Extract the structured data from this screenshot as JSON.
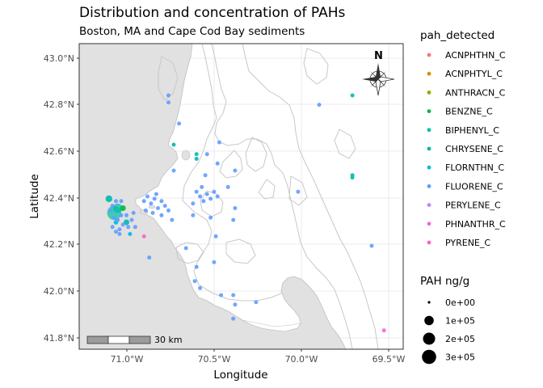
{
  "title": "Distribution and concentration of PAHs",
  "subtitle": "Boston, MA and Cape Cod Bay sediments",
  "x_axis_title": "Longitude",
  "y_axis_title": "Latitude",
  "x_ticks": [
    "71.0°W",
    "70.5°W",
    "70.0°W",
    "69.5°W"
  ],
  "y_ticks": [
    "43.0°N",
    "42.8°N",
    "42.6°N",
    "42.4°N",
    "42.2°N",
    "42.0°N",
    "41.8°N"
  ],
  "north_label": "N",
  "scale_label": "30 km",
  "legend_color": {
    "title": "pah_detected",
    "items": [
      {
        "label": "ACNPHTHN_C",
        "color": "#F8766D"
      },
      {
        "label": "ACNPHTYL_C",
        "color": "#D39200"
      },
      {
        "label": "ANTHRACN_C",
        "color": "#93AA00"
      },
      {
        "label": "BENZNE_C",
        "color": "#00BA38"
      },
      {
        "label": "BIPHENYL_C",
        "color": "#00C19F"
      },
      {
        "label": "CHRYSENE_C",
        "color": "#00B9AE"
      },
      {
        "label": "FLORNTHN_C",
        "color": "#00B9E3"
      },
      {
        "label": "FLUORENE_C",
        "color": "#619CFF"
      },
      {
        "label": "PERYLENE_C",
        "color": "#B983FF"
      },
      {
        "label": "PHNANTHR_C",
        "color": "#F564E3"
      },
      {
        "label": "PYRENE_C",
        "color": "#FF61C3"
      }
    ]
  },
  "legend_size": {
    "title": "PAH ng/g",
    "items": [
      {
        "label": "0e+00",
        "value": 0
      },
      {
        "label": "1e+05",
        "value": 100000
      },
      {
        "label": "2e+05",
        "value": 200000
      },
      {
        "label": "3e+05",
        "value": 300000
      }
    ]
  },
  "chart_data": {
    "type": "scatter",
    "title": "Distribution and concentration of PAHs",
    "subtitle": "Boston, MA and Cape Cod Bay sediments",
    "xlabel": "Longitude",
    "ylabel": "Latitude",
    "xlim": [
      -71.27,
      -69.42
    ],
    "ylim": [
      41.76,
      43.06
    ],
    "grid": true,
    "legend_placement": "right",
    "points": [
      {
        "lon": -71.07,
        "lat": 42.34,
        "pah": "BIPHENYL_C",
        "conc": 300000
      },
      {
        "lon": -71.05,
        "lat": 42.36,
        "pah": "CHRYSENE_C",
        "conc": 100000
      },
      {
        "lon": -71.1,
        "lat": 42.4,
        "pah": "CHRYSENE_C",
        "conc": 40000
      },
      {
        "lon": -71.02,
        "lat": 42.36,
        "pah": "BENZNE_C",
        "conc": 20000
      },
      {
        "lon": -71.0,
        "lat": 42.3,
        "pah": "CHRYSENE_C",
        "conc": 20000
      },
      {
        "lon": -71.06,
        "lat": 42.3,
        "pah": "FLORNTHN_C",
        "conc": 10000
      },
      {
        "lon": -71.04,
        "lat": 42.27,
        "pah": "FLUORENE_C",
        "conc": 5000
      },
      {
        "lon": -70.99,
        "lat": 42.28,
        "pah": "FLUORENE_C",
        "conc": 5000
      },
      {
        "lon": -71.08,
        "lat": 42.37,
        "pah": "FLUORENE_C",
        "conc": 5000
      },
      {
        "lon": -71.06,
        "lat": 42.39,
        "pah": "FLUORENE_C",
        "conc": 5000
      },
      {
        "lon": -71.03,
        "lat": 42.39,
        "pah": "FLUORENE_C",
        "conc": 5000
      },
      {
        "lon": -71.07,
        "lat": 42.32,
        "pah": "FLUORENE_C",
        "conc": 5000
      },
      {
        "lon": -71.03,
        "lat": 42.33,
        "pah": "FLUORENE_C",
        "conc": 5000
      },
      {
        "lon": -71.05,
        "lat": 42.31,
        "pah": "FLUORENE_C",
        "conc": 5000
      },
      {
        "lon": -71.02,
        "lat": 42.29,
        "pah": "FLUORENE_C",
        "conc": 5000
      },
      {
        "lon": -71.04,
        "lat": 42.25,
        "pah": "FLUORENE_C",
        "conc": 5000
      },
      {
        "lon": -70.98,
        "lat": 42.25,
        "pah": "FLORNTHN_C",
        "conc": 5000
      },
      {
        "lon": -71.06,
        "lat": 42.26,
        "pah": "FLUORENE_C",
        "conc": 5000
      },
      {
        "lon": -71.0,
        "lat": 42.33,
        "pah": "FLUORENE_C",
        "conc": 5000
      },
      {
        "lon": -70.97,
        "lat": 42.31,
        "pah": "FLUORENE_C",
        "conc": 5000
      },
      {
        "lon": -70.95,
        "lat": 42.28,
        "pah": "FLUORENE_C",
        "conc": 5000
      },
      {
        "lon": -71.08,
        "lat": 42.28,
        "pah": "FLUORENE_C",
        "conc": 5000
      },
      {
        "lon": -71.09,
        "lat": 42.35,
        "pah": "FLUORENE_C",
        "conc": 5000
      },
      {
        "lon": -70.96,
        "lat": 42.34,
        "pah": "FLUORENE_C",
        "conc": 5000
      },
      {
        "lon": -70.9,
        "lat": 42.39,
        "pah": "FLUORENE_C",
        "conc": 5000
      },
      {
        "lon": -70.88,
        "lat": 42.41,
        "pah": "FLUORENE_C",
        "conc": 5000
      },
      {
        "lon": -70.86,
        "lat": 42.38,
        "pah": "FLUORENE_C",
        "conc": 5000
      },
      {
        "lon": -70.84,
        "lat": 42.4,
        "pah": "FLUORENE_C",
        "conc": 5000
      },
      {
        "lon": -70.82,
        "lat": 42.36,
        "pah": "FLUORENE_C",
        "conc": 5000
      },
      {
        "lon": -70.8,
        "lat": 42.39,
        "pah": "FLUORENE_C",
        "conc": 5000
      },
      {
        "lon": -70.78,
        "lat": 42.37,
        "pah": "FLUORENE_C",
        "conc": 5000
      },
      {
        "lon": -70.89,
        "lat": 42.35,
        "pah": "FLUORENE_C",
        "conc": 5000
      },
      {
        "lon": -70.85,
        "lat": 42.34,
        "pah": "FLUORENE_C",
        "conc": 5000
      },
      {
        "lon": -70.83,
        "lat": 42.42,
        "pah": "FLUORENE_C",
        "conc": 5000
      },
      {
        "lon": -70.8,
        "lat": 42.33,
        "pah": "FLUORENE_C",
        "conc": 5000
      },
      {
        "lon": -70.76,
        "lat": 42.35,
        "pah": "FLUORENE_C",
        "conc": 5000
      },
      {
        "lon": -70.74,
        "lat": 42.31,
        "pah": "FLUORENE_C",
        "conc": 5000
      },
      {
        "lon": -70.6,
        "lat": 42.43,
        "pah": "FLUORENE_C",
        "conc": 5000
      },
      {
        "lon": -70.58,
        "lat": 42.41,
        "pah": "FLUORENE_C",
        "conc": 5000
      },
      {
        "lon": -70.56,
        "lat": 42.39,
        "pah": "FLUORENE_C",
        "conc": 5000
      },
      {
        "lon": -70.54,
        "lat": 42.42,
        "pah": "FLUORENE_C",
        "conc": 5000
      },
      {
        "lon": -70.52,
        "lat": 42.4,
        "pah": "FLUORENE_C",
        "conc": 5000
      },
      {
        "lon": -70.5,
        "lat": 42.43,
        "pah": "FLUORENE_C",
        "conc": 5000
      },
      {
        "lon": -70.48,
        "lat": 42.41,
        "pah": "FLUORENE_C",
        "conc": 5000
      },
      {
        "lon": -70.57,
        "lat": 42.45,
        "pah": "FLUORENE_C",
        "conc": 5000
      },
      {
        "lon": -70.62,
        "lat": 42.38,
        "pah": "FLUORENE_C",
        "conc": 5000
      },
      {
        "lon": -70.62,
        "lat": 42.33,
        "pah": "FLUORENE_C",
        "conc": 5000
      },
      {
        "lon": -70.52,
        "lat": 42.32,
        "pah": "FLUORENE_C",
        "conc": 5000
      },
      {
        "lon": -70.55,
        "lat": 42.5,
        "pah": "FLUORENE_C",
        "conc": 5000
      },
      {
        "lon": -70.48,
        "lat": 42.55,
        "pah": "FLUORENE_C",
        "conc": 5000
      },
      {
        "lon": -70.42,
        "lat": 42.45,
        "pah": "FLUORENE_C",
        "conc": 5000
      },
      {
        "lon": -70.39,
        "lat": 42.31,
        "pah": "FLUORENE_C",
        "conc": 5000
      },
      {
        "lon": -70.38,
        "lat": 42.36,
        "pah": "FLUORENE_C",
        "conc": 5000
      },
      {
        "lon": -70.38,
        "lat": 42.52,
        "pah": "FLUORENE_C",
        "conc": 5000
      },
      {
        "lon": -70.47,
        "lat": 42.64,
        "pah": "FLUORENE_C",
        "conc": 5000
      },
      {
        "lon": -70.54,
        "lat": 42.59,
        "pah": "FLUORENE_C",
        "conc": 5000
      },
      {
        "lon": -70.6,
        "lat": 42.57,
        "pah": "CHRYSENE_C",
        "conc": 5000
      },
      {
        "lon": -70.6,
        "lat": 42.59,
        "pah": "BIPHENYL_C",
        "conc": 5000
      },
      {
        "lon": -70.73,
        "lat": 42.63,
        "pah": "CHRYSENE_C",
        "conc": 5000
      },
      {
        "lon": -70.7,
        "lat": 42.72,
        "pah": "FLUORENE_C",
        "conc": 5000
      },
      {
        "lon": -70.76,
        "lat": 42.81,
        "pah": "FLUORENE_C",
        "conc": 5000
      },
      {
        "lon": -70.76,
        "lat": 42.84,
        "pah": "FLUORENE_C",
        "conc": 5000
      },
      {
        "lon": -70.73,
        "lat": 42.52,
        "pah": "FLUORENE_C",
        "conc": 5000
      },
      {
        "lon": -70.66,
        "lat": 42.19,
        "pah": "FLUORENE_C",
        "conc": 5000
      },
      {
        "lon": -70.49,
        "lat": 42.24,
        "pah": "FLUORENE_C",
        "conc": 5000
      },
      {
        "lon": -70.5,
        "lat": 42.13,
        "pah": "FLUORENE_C",
        "conc": 5000
      },
      {
        "lon": -70.46,
        "lat": 41.99,
        "pah": "FLUORENE_C",
        "conc": 5000
      },
      {
        "lon": -70.39,
        "lat": 41.99,
        "pah": "FLUORENE_C",
        "conc": 5000
      },
      {
        "lon": -70.26,
        "lat": 41.96,
        "pah": "FLUORENE_C",
        "conc": 5000
      },
      {
        "lon": -70.38,
        "lat": 41.95,
        "pah": "FLUORENE_C",
        "conc": 5000
      },
      {
        "lon": -70.39,
        "lat": 41.89,
        "pah": "FLUORENE_C",
        "conc": 5000
      },
      {
        "lon": -70.61,
        "lat": 42.05,
        "pah": "FLUORENE_C",
        "conc": 5000
      },
      {
        "lon": -70.58,
        "lat": 42.02,
        "pah": "FLUORENE_C",
        "conc": 5000
      },
      {
        "lon": -70.6,
        "lat": 42.11,
        "pah": "FLUORENE_C",
        "conc": 5000
      },
      {
        "lon": -70.02,
        "lat": 42.43,
        "pah": "FLUORENE_C",
        "conc": 5000
      },
      {
        "lon": -69.9,
        "lat": 42.8,
        "pah": "FLUORENE_C",
        "conc": 5000
      },
      {
        "lon": -69.71,
        "lat": 42.84,
        "pah": "CHRYSENE_C",
        "conc": 5000
      },
      {
        "lon": -69.71,
        "lat": 42.49,
        "pah": "BIPHENYL_C",
        "conc": 5000
      },
      {
        "lon": -69.71,
        "lat": 42.5,
        "pah": "CHRYSENE_C",
        "conc": 5000
      },
      {
        "lon": -69.6,
        "lat": 42.2,
        "pah": "FLUORENE_C",
        "conc": 5000
      },
      {
        "lon": -69.53,
        "lat": 41.84,
        "pah": "PHNANTHR_C",
        "conc": 5000
      },
      {
        "lon": -70.9,
        "lat": 42.24,
        "pah": "PYRENE_C",
        "conc": 5000
      },
      {
        "lon": -70.87,
        "lat": 42.15,
        "pah": "FLUORENE_C",
        "conc": 5000
      }
    ]
  }
}
